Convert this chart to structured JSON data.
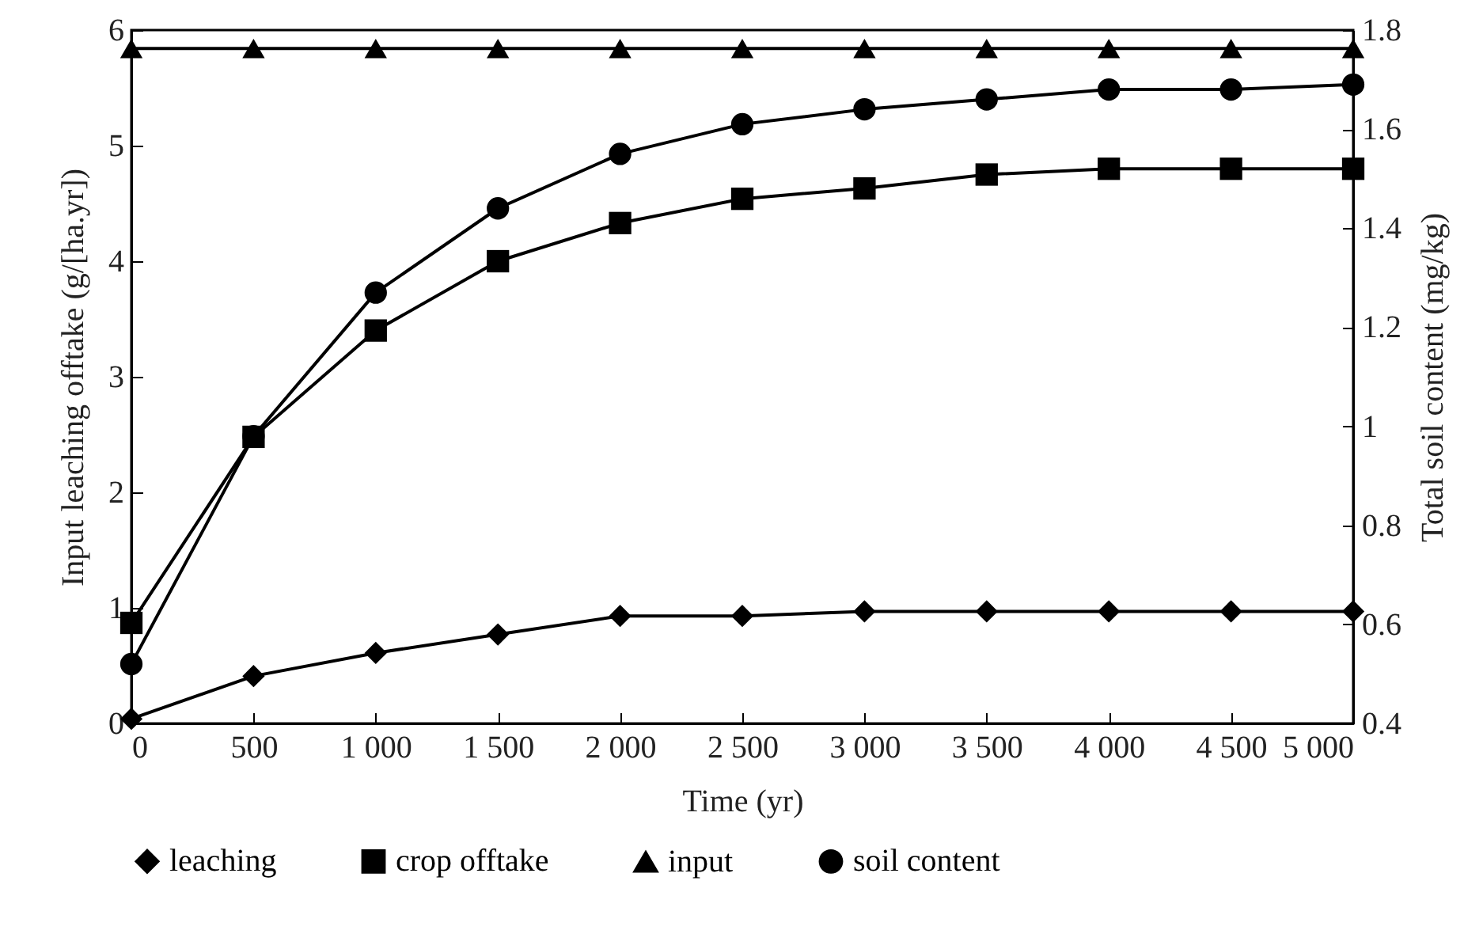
{
  "chart_data": {
    "type": "line",
    "xlabel": "Time (yr)",
    "ylabel": "Input leaching offtake (g/[ha.yr])",
    "y2label": "Total soil content (mg/kg)",
    "x": [
      0,
      500,
      1000,
      1500,
      2000,
      2500,
      3000,
      3500,
      4000,
      4500,
      5000
    ],
    "xlim": [
      0,
      5000
    ],
    "xticks": [
      0,
      500,
      {
        "value": 1000,
        "label": "1 000"
      },
      {
        "value": 1500,
        "label": "1 500"
      },
      {
        "value": 2000,
        "label": "2 000"
      },
      {
        "value": 2500,
        "label": "2 500"
      },
      {
        "value": 3000,
        "label": "3 000"
      },
      {
        "value": 3500,
        "label": "3 500"
      },
      {
        "value": 4000,
        "label": "4 000"
      },
      {
        "value": 4500,
        "label": "4 500"
      },
      {
        "value": 5000,
        "label": "5 000"
      }
    ],
    "ylim": [
      0,
      6
    ],
    "yticks": [
      0,
      1,
      2,
      3,
      4,
      5,
      6
    ],
    "y2lim": [
      0.4,
      1.8
    ],
    "y2ticks": [
      0.4,
      0.6,
      0.8,
      1,
      1.2,
      1.4,
      1.6,
      1.8
    ],
    "grid": false,
    "legend": "bottom",
    "line_style": "solid",
    "series": [
      {
        "name": "leaching",
        "color": "#000000",
        "marker": "diamond",
        "values": [
          0.04,
          0.41,
          0.61,
          0.77,
          0.93,
          0.93,
          0.97,
          0.97,
          0.97,
          0.97,
          0.97
        ]
      },
      {
        "name": "crop offtake",
        "color": "#000000",
        "marker": "square",
        "values": [
          0.87,
          2.48,
          3.4,
          4.0,
          4.33,
          4.54,
          4.63,
          4.75,
          4.8,
          4.8,
          4.8
        ]
      },
      {
        "name": "input",
        "color": "#000000",
        "marker": "triangle",
        "values": [
          5.84,
          5.84,
          5.84,
          5.84,
          5.84,
          5.84,
          5.84,
          5.84,
          5.84,
          5.84,
          5.84
        ]
      },
      {
        "name": "soil content",
        "color": "#000000",
        "marker": "circle",
        "axis": "y2",
        "values": [
          0.52,
          0.98,
          1.27,
          1.44,
          1.55,
          1.61,
          1.64,
          1.66,
          1.68,
          1.68,
          1.69
        ]
      }
    ]
  }
}
